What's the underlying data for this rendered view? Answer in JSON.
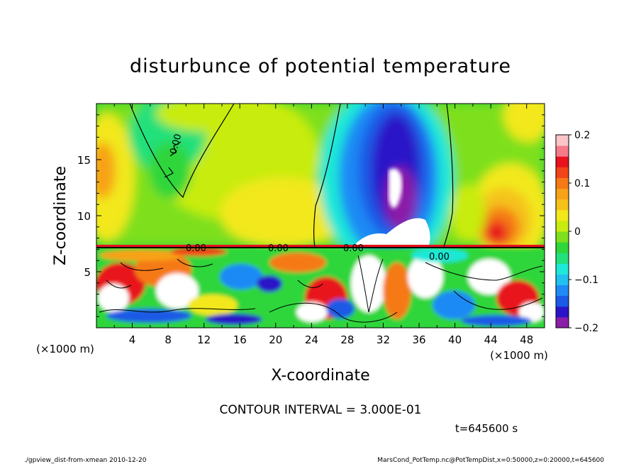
{
  "chart_data": {
    "type": "heatmap",
    "title": "disturbunce of potential temperature",
    "xlabel": "X-coordinate",
    "ylabel": "Z-coordinate",
    "x_unit": "(×1000 m)",
    "y_unit": "(×1000 m)",
    "xlim": [
      0,
      50
    ],
    "ylim": [
      0,
      20
    ],
    "x_ticks": [
      "4",
      "8",
      "12",
      "16",
      "20",
      "24",
      "28",
      "32",
      "36",
      "40",
      "44",
      "48"
    ],
    "y_ticks": [
      "5",
      "10",
      "15"
    ],
    "colorbar": {
      "range": [
        -0.2,
        0.2
      ],
      "tick_labels": [
        "0.2",
        "0.1",
        "0",
        "−0.1",
        "−0.2"
      ],
      "colors": [
        "#8a1ea8",
        "#2b14c8",
        "#1a5ae6",
        "#1f8af5",
        "#20c0f0",
        "#1ee8d8",
        "#22e07a",
        "#2ed63a",
        "#7ee01c",
        "#c8ec10",
        "#f2e81a",
        "#f5c21a",
        "#f7a218",
        "#f57a16",
        "#f24418",
        "#e8121e",
        "#f57a8a",
        "#fbc4c8"
      ]
    },
    "contour_label": "0.00",
    "contour_interval_text": "CONTOUR INTERVAL = 3.000E-01",
    "time_text": "t=645600 s",
    "footer_left": "./gpview_dist-from-xmean  2010-12-20",
    "footer_right": "MarsCond_PotTemp.nc@PotTempDist,x=0:50000,z=0:20000,t=645600"
  }
}
